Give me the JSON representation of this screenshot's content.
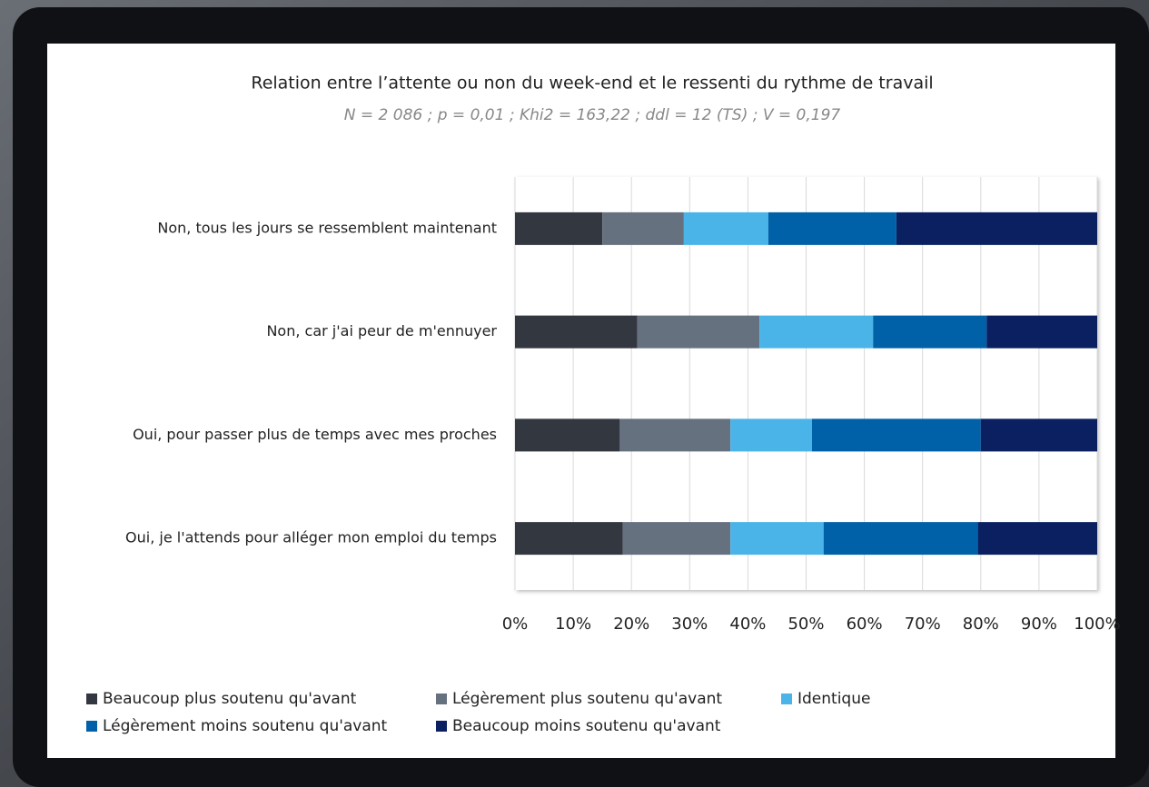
{
  "chart_data": {
    "type": "bar_stacked_horizontal",
    "title": "Relation entre l’attente ou non du week-end et le ressenti du rythme de travail",
    "subtitle": "N = 2 086 ; p = 0,01 ; Khi2 = 163,22 ; ddl = 12 (TS) ; V = 0,197",
    "categories": [
      "Non, tous les jours se ressemblent maintenant",
      "Non, car j'ai peur de m'ennuyer",
      "Oui, pour passer plus de temps avec mes proches",
      "Oui, je l'attends pour alléger mon emploi du temps"
    ],
    "series": [
      {
        "name": "Beaucoup plus soutenu qu'avant",
        "color": "#333740",
        "values": [
          15,
          21,
          18,
          18.5
        ]
      },
      {
        "name": "Légèrement plus soutenu qu'avant",
        "color": "#667180",
        "values": [
          14,
          21,
          19,
          18.5
        ]
      },
      {
        "name": "Identique",
        "color": "#4ab4e8",
        "values": [
          14.5,
          19.5,
          14,
          16
        ]
      },
      {
        "name": "Légèrement moins soutenu qu'avant",
        "color": "#0060a8",
        "values": [
          22,
          19.5,
          29,
          26.5
        ]
      },
      {
        "name": "Beaucoup moins soutenu qu'avant",
        "color": "#0a2060",
        "values": [
          34.5,
          19,
          20,
          20.5
        ]
      }
    ],
    "xlim": [
      0,
      100
    ],
    "xticks": [
      {
        "value": 0,
        "label": "0%"
      },
      {
        "value": 10,
        "label": "10%"
      },
      {
        "value": 20,
        "label": "20%"
      },
      {
        "value": 30,
        "label": "30%"
      },
      {
        "value": 40,
        "label": "40%"
      },
      {
        "value": 50,
        "label": "50%"
      },
      {
        "value": 60,
        "label": "60%"
      },
      {
        "value": 70,
        "label": "70%"
      },
      {
        "value": 80,
        "label": "80%"
      },
      {
        "value": 90,
        "label": "90%"
      },
      {
        "value": 100,
        "label": "100%"
      }
    ],
    "grid": true,
    "legend": "bottom"
  }
}
